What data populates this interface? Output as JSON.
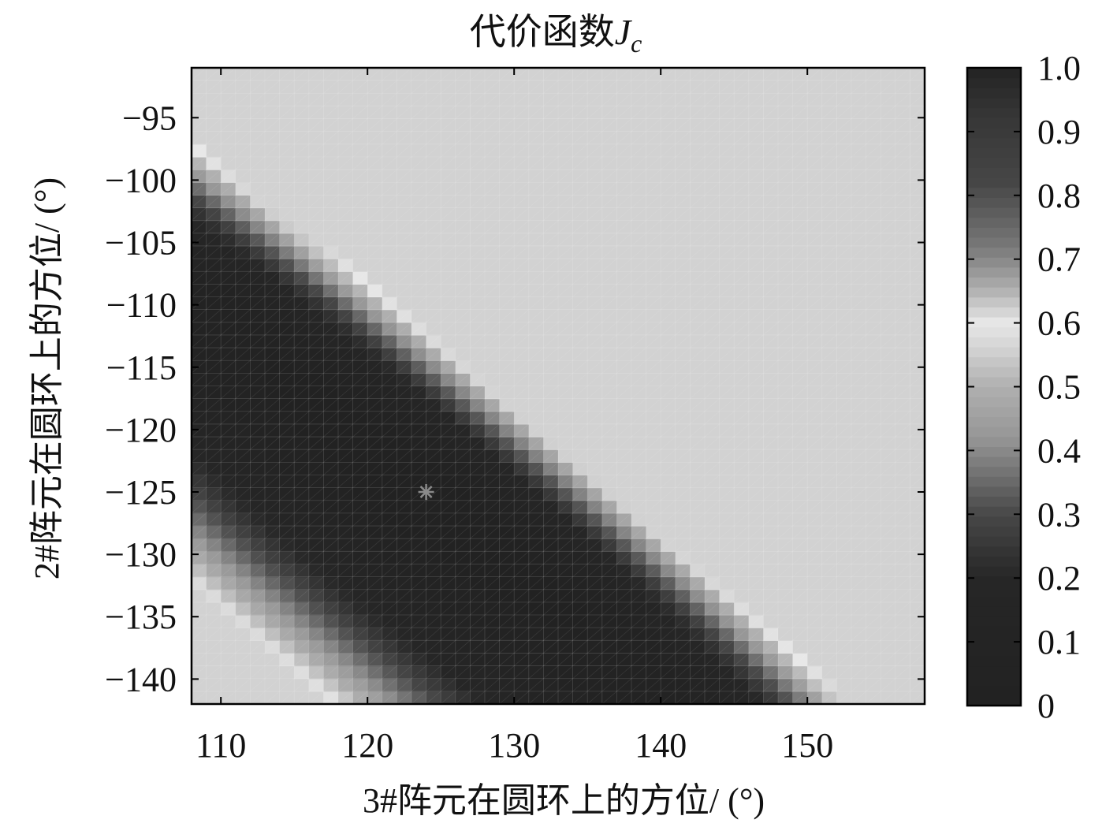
{
  "chart_data": {
    "type": "heatmap",
    "title": "代价函数",
    "title_symbol": "J",
    "title_subscript": "c",
    "xlabel": "3#阵元在圆环上的方位/ (°)",
    "ylabel": "2#阵元在圆环上的方位/ (°)",
    "x_range": [
      108,
      158
    ],
    "y_range": [
      -142,
      -91
    ],
    "x_ticks": [
      "110",
      "120",
      "130",
      "140",
      "150"
    ],
    "x_tick_values": [
      110,
      120,
      130,
      140,
      150
    ],
    "y_ticks": [
      "−95",
      "−100",
      "−105",
      "−110",
      "−115",
      "−120",
      "−125",
      "−130",
      "−135",
      "−140"
    ],
    "y_tick_values": [
      -95,
      -100,
      -105,
      -110,
      -115,
      -120,
      -125,
      -130,
      -135,
      -140
    ],
    "colorbar": {
      "range": [
        0,
        1
      ],
      "ticks": [
        "0",
        "0.1",
        "0.2",
        "0.3",
        "0.4",
        "0.5",
        "0.6",
        "0.7",
        "0.8",
        "0.9",
        "1.0"
      ],
      "tick_values": [
        0,
        0.1,
        0.2,
        0.3,
        0.4,
        0.5,
        0.6,
        0.7,
        0.8,
        0.9,
        1.0
      ]
    },
    "grid_resolution": {
      "nx": 50,
      "ny": 50
    },
    "marker": {
      "x": 124,
      "y": -125,
      "symbol": "*"
    },
    "grid": true,
    "colormap": "grayscale-wrapped"
  }
}
